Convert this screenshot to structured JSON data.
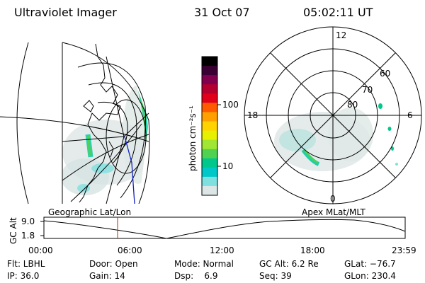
{
  "header": {
    "title": "Ultraviolet Imager",
    "date": "31 Oct 07",
    "time": "05:02:11 UT"
  },
  "left_map": {
    "caption": "Geographic Lat/Lon"
  },
  "colorbar": {
    "label": "photon cm⁻²s⁻¹",
    "ticks": [
      "100",
      "10"
    ],
    "colors": [
      "#000000",
      "#3a0033",
      "#80004d",
      "#b3002e",
      "#e0001a",
      "#ff5a00",
      "#ffa000",
      "#ffd200",
      "#e6f000",
      "#a0e632",
      "#50d250",
      "#00c88c",
      "#00c8c8",
      "#7fe0e0",
      "#dce6e6"
    ]
  },
  "polar_plot": {
    "caption": "Apex MLat/MLT",
    "mlt_labels": {
      "top": "12",
      "left": "18",
      "right": "6",
      "bottom": "0"
    },
    "lat_labels": [
      "60",
      "70",
      "80"
    ]
  },
  "altitude_plot": {
    "ylabel": "GC Alt",
    "yticks": [
      "9.0",
      "1.8"
    ],
    "xticks": [
      "00:00",
      "06:00",
      "12:00",
      "18:00",
      "23:59"
    ]
  },
  "info": {
    "row1": {
      "filter": "Flt: LBHL",
      "door": "Door: Open",
      "mode": "Mode: Normal",
      "gc_alt": "GC Alt: 6.2 Re",
      "glat": "GLat: −76.7"
    },
    "row2": {
      "ip": "IP: 36.0",
      "gain": "Gain: 14",
      "dsp": "Dsp:    6.9",
      "seq": "Seq: 39",
      "glon": "GLon: 230.4"
    }
  }
}
